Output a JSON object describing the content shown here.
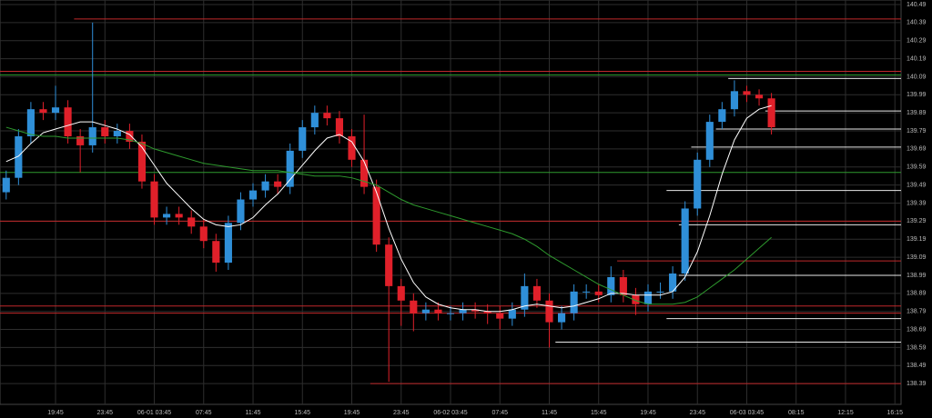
{
  "chart_data": {
    "type": "candlestick",
    "categories": [
      null,
      null,
      null,
      null,
      "19:45",
      null,
      null,
      null,
      "23:45",
      null,
      null,
      null,
      "06-01 03:45",
      null,
      null,
      null,
      "07:45",
      null,
      null,
      null,
      "11:45",
      null,
      null,
      null,
      "15:45",
      null,
      null,
      null,
      "19:45",
      null,
      null,
      null,
      "23:45",
      null,
      null,
      null,
      "06-02 03:45",
      null,
      null,
      null,
      "07:45",
      null,
      null,
      null,
      "11:45",
      null,
      null,
      null,
      "15:45",
      null,
      null,
      null,
      "19:45",
      null,
      null,
      null,
      "23:45",
      null,
      null,
      null,
      "06-03 03:45",
      null,
      null,
      null,
      "08:15",
      null,
      null,
      null,
      "12:15",
      null,
      null,
      null,
      "16:15"
    ],
    "open": [
      139.45,
      139.53,
      139.76,
      139.91,
      139.89,
      139.92,
      139.76,
      139.71,
      139.81,
      139.76,
      139.79,
      139.73,
      139.51,
      139.31,
      139.33,
      139.31,
      139.26,
      139.18,
      139.06,
      139.28,
      139.41,
      139.46,
      139.51,
      139.48,
      139.68,
      139.81,
      139.89,
      139.86,
      139.76,
      139.63,
      139.48,
      139.16,
      138.93,
      138.85,
      138.78,
      138.8,
      138.78,
      138.78,
      138.8,
      138.79,
      138.78,
      138.75,
      138.8,
      138.93,
      138.85,
      138.73,
      138.78,
      138.9,
      138.9,
      138.88,
      138.98,
      138.88,
      138.83,
      138.9,
      138.9,
      139.0,
      139.36,
      139.63,
      139.84,
      139.91,
      140.01,
      139.99,
      139.97,
      null,
      null,
      null,
      null,
      null,
      null,
      null,
      null,
      null,
      null
    ],
    "high": [
      139.57,
      139.8,
      139.95,
      139.95,
      140.04,
      139.96,
      139.8,
      140.39,
      139.85,
      139.83,
      139.83,
      139.77,
      139.55,
      139.37,
      139.37,
      139.35,
      139.3,
      139.22,
      139.32,
      139.45,
      139.5,
      139.55,
      139.55,
      139.72,
      139.85,
      139.93,
      139.93,
      139.9,
      139.8,
      139.88,
      139.52,
      139.2,
      138.97,
      138.89,
      138.84,
      138.84,
      138.82,
      138.84,
      138.84,
      138.83,
      138.82,
      138.84,
      139.0,
      138.97,
      138.89,
      138.82,
      138.94,
      138.94,
      138.94,
      139.04,
      139.02,
      138.92,
      138.94,
      138.95,
      139.04,
      139.4,
      139.67,
      139.88,
      139.95,
      140.07,
      140.04,
      140.02,
      140.0,
      null,
      null,
      null,
      null,
      null,
      null,
      null,
      null,
      null,
      null
    ],
    "low": [
      139.41,
      139.49,
      139.72,
      139.85,
      139.85,
      139.72,
      139.56,
      139.67,
      139.72,
      139.72,
      139.69,
      139.47,
      139.27,
      139.27,
      139.27,
      139.22,
      139.14,
      139.01,
      139.02,
      139.24,
      139.37,
      139.42,
      139.44,
      139.44,
      139.64,
      139.77,
      139.82,
      139.72,
      139.59,
      139.44,
      139.12,
      138.4,
      138.71,
      138.68,
      138.74,
      138.74,
      138.74,
      138.74,
      138.75,
      138.72,
      138.69,
      138.71,
      138.76,
      138.81,
      138.59,
      138.69,
      138.74,
      138.86,
      138.84,
      138.84,
      138.84,
      138.77,
      138.79,
      138.86,
      138.86,
      138.96,
      139.32,
      139.59,
      139.8,
      139.87,
      139.95,
      139.93,
      139.77,
      null,
      null,
      null,
      null,
      null,
      null,
      null,
      null,
      null,
      null
    ],
    "close": [
      139.53,
      139.76,
      139.91,
      139.89,
      139.92,
      139.76,
      139.71,
      139.81,
      139.76,
      139.79,
      139.73,
      139.51,
      139.31,
      139.33,
      139.31,
      139.26,
      139.18,
      139.06,
      139.28,
      139.41,
      139.46,
      139.51,
      139.48,
      139.68,
      139.81,
      139.89,
      139.86,
      139.76,
      139.63,
      139.48,
      139.16,
      138.93,
      138.85,
      138.78,
      138.8,
      138.78,
      138.78,
      138.8,
      138.79,
      138.78,
      138.75,
      138.8,
      138.93,
      138.85,
      138.73,
      138.78,
      138.9,
      138.9,
      138.88,
      138.98,
      138.88,
      138.83,
      138.9,
      138.9,
      139.0,
      139.36,
      139.63,
      139.84,
      139.91,
      140.01,
      139.99,
      139.97,
      139.81,
      null,
      null,
      null,
      null,
      null,
      null,
      null,
      null,
      null,
      null
    ],
    "up_color": "#2f8fd8",
    "down_color": "#e0202a",
    "moving_averages": [
      {
        "color": "#ffffff",
        "values": [
          139.62,
          139.65,
          139.72,
          139.78,
          139.8,
          139.82,
          139.84,
          139.84,
          139.82,
          139.8,
          139.77,
          139.7,
          139.6,
          139.5,
          139.43,
          139.36,
          139.3,
          139.27,
          139.26,
          139.27,
          139.31,
          139.38,
          139.44,
          139.52,
          139.6,
          139.68,
          139.75,
          139.77,
          139.73,
          139.62,
          139.45,
          139.25,
          139.08,
          138.95,
          138.87,
          138.83,
          138.81,
          138.8,
          138.8,
          138.79,
          138.79,
          138.8,
          138.82,
          138.83,
          138.82,
          138.81,
          138.82,
          138.84,
          138.86,
          138.89,
          138.89,
          138.88,
          138.88,
          138.88,
          138.9,
          138.98,
          139.12,
          139.32,
          139.55,
          139.74,
          139.86,
          139.91,
          139.93,
          null,
          null,
          null,
          null,
          null,
          null,
          null,
          null,
          null,
          null
        ]
      },
      {
        "color": "#2e9a2e",
        "values": [
          139.81,
          139.79,
          139.77,
          139.76,
          139.76,
          139.75,
          139.75,
          139.75,
          139.75,
          139.75,
          139.74,
          139.72,
          139.69,
          139.67,
          139.65,
          139.63,
          139.61,
          139.6,
          139.59,
          139.58,
          139.57,
          139.57,
          139.57,
          139.56,
          139.55,
          139.54,
          139.54,
          139.54,
          139.53,
          139.51,
          139.49,
          139.45,
          139.41,
          139.38,
          139.36,
          139.34,
          139.32,
          139.3,
          139.28,
          139.26,
          139.24,
          139.22,
          139.19,
          139.15,
          139.1,
          139.06,
          139.02,
          138.98,
          138.94,
          138.91,
          138.88,
          138.85,
          138.83,
          138.83,
          138.83,
          138.84,
          138.87,
          138.92,
          138.97,
          139.02,
          139.08,
          139.14,
          139.2,
          null,
          null,
          null,
          null,
          null,
          null,
          null,
          null,
          null,
          null
        ]
      }
    ],
    "levels": [
      {
        "value": 140.41,
        "color": "#c0282a",
        "from": 6
      },
      {
        "value": 140.12,
        "color": "#c0282a",
        "from": 0
      },
      {
        "value": 140.1,
        "color": "#2e9a2e",
        "from": 0
      },
      {
        "value": 139.56,
        "color": "#2e9a2e",
        "from": 0
      },
      {
        "value": 139.29,
        "color": "#c0282a",
        "from": 0
      },
      {
        "value": 139.07,
        "color": "#c0282a",
        "from": 50
      },
      {
        "value": 138.82,
        "color": "#c0282a",
        "from": 0
      },
      {
        "value": 138.78,
        "color": "#c0282a",
        "from": 0
      },
      {
        "value": 138.39,
        "color": "#c0282a",
        "from": 30
      },
      {
        "value": 140.08,
        "color": "#e8e8e8",
        "from": 59
      },
      {
        "value": 139.9,
        "color": "#e8e8e8",
        "from": 62
      },
      {
        "value": 139.8,
        "color": "#e8e8e8",
        "from": 58
      },
      {
        "value": 139.7,
        "color": "#e8e8e8",
        "from": 56
      },
      {
        "value": 139.46,
        "color": "#e8e8e8",
        "from": 54
      },
      {
        "value": 139.27,
        "color": "#e8e8e8",
        "from": 55
      },
      {
        "value": 138.99,
        "color": "#e8e8e8",
        "from": 55
      },
      {
        "value": 138.75,
        "color": "#e8e8e8",
        "from": 54
      },
      {
        "value": 138.62,
        "color": "#e8e8e8",
        "from": 45
      }
    ],
    "ylim": [
      138.275,
      140.515
    ],
    "yticks": [
      140.49,
      140.39,
      140.29,
      140.19,
      140.09,
      139.99,
      139.89,
      139.79,
      139.69,
      139.59,
      139.49,
      139.39,
      139.29,
      139.19,
      139.09,
      138.99,
      138.89,
      138.79,
      138.69,
      138.59,
      138.49,
      138.39
    ],
    "grid": true
  }
}
